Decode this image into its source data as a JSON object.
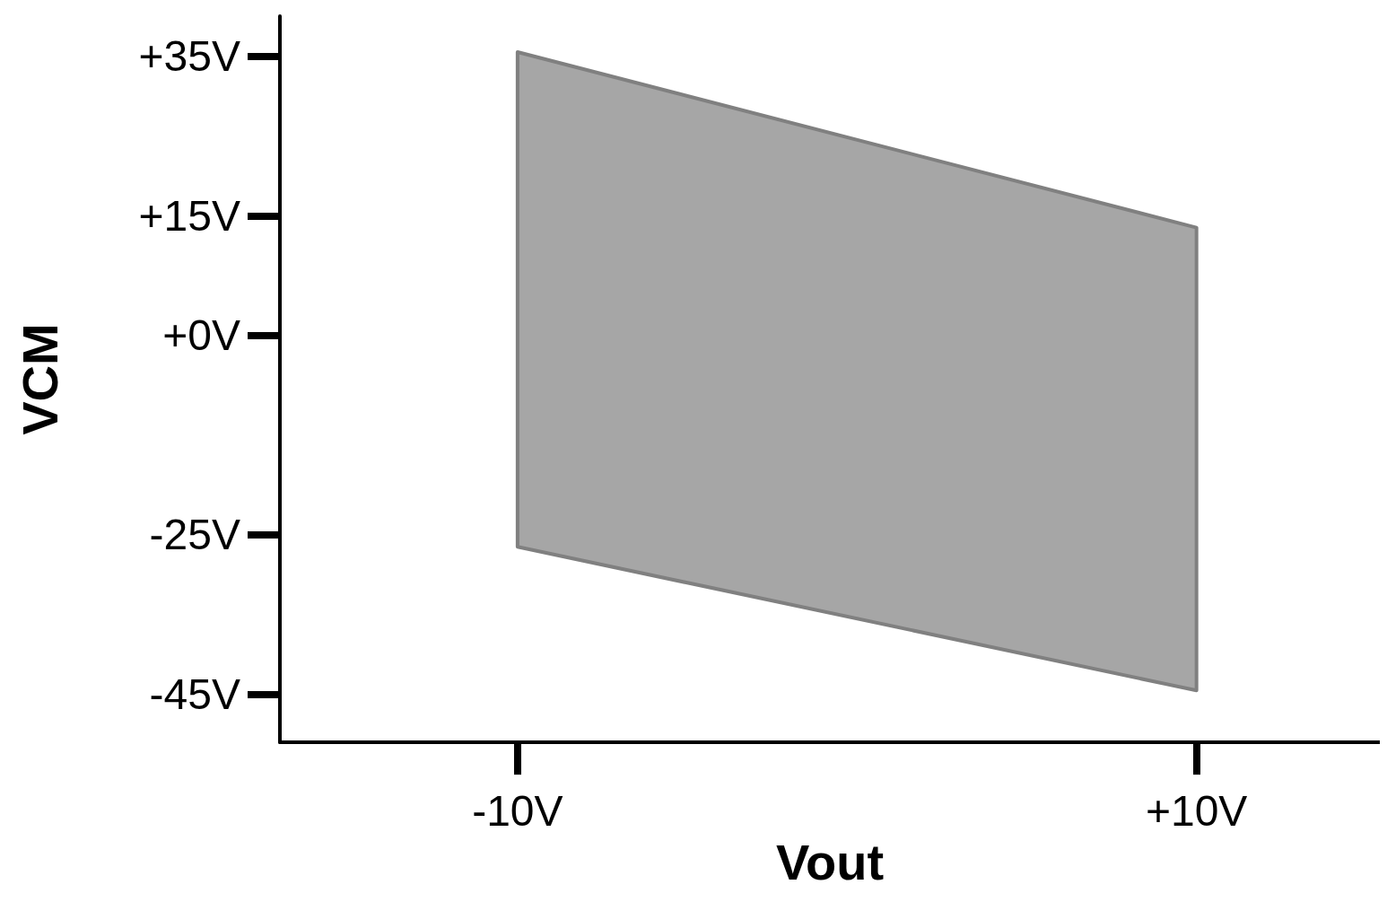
{
  "chart_data": {
    "type": "area",
    "xlabel": "Vout",
    "ylabel": "VCM",
    "x": [
      -10,
      10
    ],
    "series": [
      {
        "color": "#a6a6a6",
        "values": [
          null,
          null
        ],
        "upper": [
          35.5,
          13.5
        ],
        "lower": [
          -26.5,
          -44.5
        ]
      }
    ],
    "xlim": [
      -17,
      15.4
    ],
    "ylim": [
      -51,
      40
    ],
    "xticks": [
      {
        "value": -10,
        "label": "-10V"
      },
      {
        "value": 10,
        "label": "+10V"
      }
    ],
    "yticks": [
      {
        "value": 35,
        "label": "+35V"
      },
      {
        "value": 15,
        "label": "+15V"
      },
      {
        "value": 0,
        "label": "+0V"
      },
      {
        "value": -25,
        "label": "-25V"
      },
      {
        "value": -45,
        "label": "-45V"
      }
    ],
    "grid": false
  }
}
